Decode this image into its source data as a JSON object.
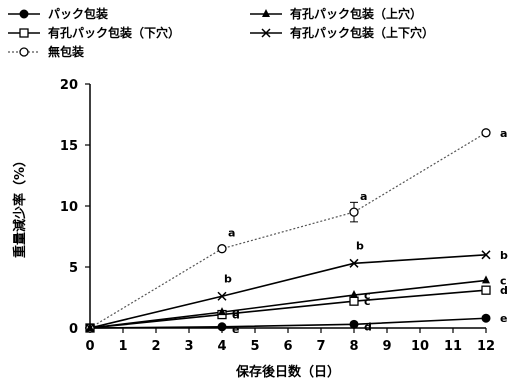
{
  "chart_data": {
    "type": "line",
    "xlabel": "保存後日数（日）",
    "ylabel": "重量減少率（%）",
    "xlim": [
      0,
      12
    ],
    "ylim": [
      0,
      20
    ],
    "xticks": [
      0,
      1,
      2,
      3,
      4,
      5,
      6,
      7,
      8,
      9,
      10,
      11,
      12
    ],
    "yticks": [
      0,
      5,
      10,
      15,
      20
    ],
    "x": [
      0,
      4,
      8,
      12
    ],
    "series": [
      {
        "name": "パック包装",
        "marker": "filled-circle",
        "line": "solid",
        "values": [
          0,
          0.1,
          0.3,
          0.8
        ],
        "letters": [
          "",
          "e",
          "d",
          "e"
        ]
      },
      {
        "name": "有孔パック包装（下穴）",
        "marker": "open-square",
        "line": "solid",
        "values": [
          0,
          1.1,
          2.2,
          3.1
        ],
        "letters": [
          "",
          "d",
          "c",
          "d"
        ]
      },
      {
        "name": "無包装",
        "marker": "open-circle",
        "line": "dotted",
        "values": [
          0,
          6.5,
          9.5,
          16
        ],
        "letters": [
          "",
          "a",
          "a",
          "a"
        ],
        "errors": [
          0,
          0,
          0.8,
          0
        ]
      },
      {
        "name": "有孔パック包装（上穴）",
        "marker": "filled-triangle",
        "line": "solid",
        "values": [
          0,
          1.3,
          2.7,
          3.9
        ],
        "letters": [
          "",
          "c",
          "c",
          "c"
        ]
      },
      {
        "name": "有孔パック包装（上下穴）",
        "marker": "x",
        "line": "solid",
        "values": [
          0,
          2.6,
          5.3,
          6.0
        ],
        "letters": [
          "",
          "b",
          "b",
          "b"
        ]
      }
    ],
    "legend_position": "top"
  }
}
